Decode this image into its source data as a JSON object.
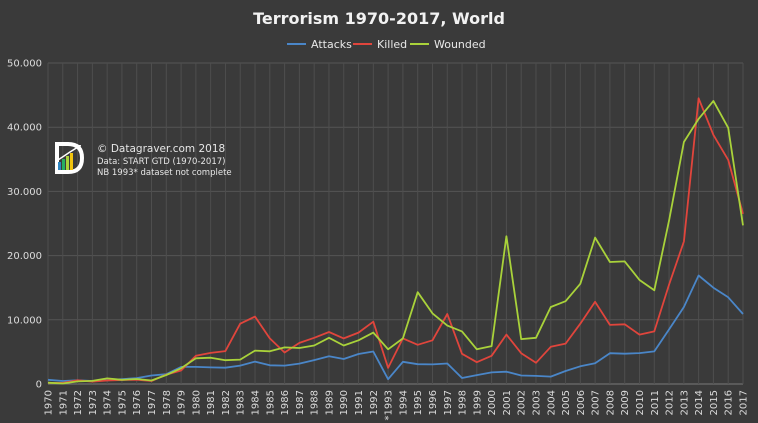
{
  "chart_data": {
    "type": "line",
    "title": "Terrorism 1970-2017, World",
    "x": [
      "1970",
      "1971",
      "1972",
      "1973",
      "1974",
      "1975",
      "1976",
      "1977",
      "1978",
      "1979",
      "1980",
      "1981",
      "1982",
      "1983",
      "1984",
      "1985",
      "1986",
      "1987",
      "1988",
      "1989",
      "1990",
      "1991",
      "1992",
      "*1993",
      "1994",
      "1995",
      "1996",
      "1997",
      "1998",
      "1999",
      "2000",
      "2001",
      "2002",
      "2003",
      "2004",
      "2005",
      "2006",
      "2007",
      "2008",
      "2009",
      "2010",
      "2011",
      "2012",
      "2013",
      "2014",
      "2015",
      "2016",
      "2017"
    ],
    "ylim": [
      0,
      50000
    ],
    "yticks": [
      0,
      10000,
      20000,
      30000,
      40000,
      50000
    ],
    "ytick_labels": [
      "0",
      "10.000",
      "20.000",
      "30.000",
      "40.000",
      "50.000"
    ],
    "grid": true,
    "legend_position": "top-center",
    "series": [
      {
        "name": "Attacks",
        "color": "#4a86c8",
        "values": [
          650,
          470,
          570,
          470,
          580,
          740,
          920,
          1320,
          1530,
          2660,
          2660,
          2590,
          2540,
          2870,
          3490,
          2920,
          2860,
          3180,
          3720,
          4320,
          3890,
          4680,
          5070,
          750,
          3460,
          3080,
          3060,
          3200,
          930,
          1390,
          1810,
          1910,
          1330,
          1260,
          1160,
          2020,
          2750,
          3240,
          4800,
          4720,
          4820,
          5080,
          8500,
          12000,
          16900,
          15000,
          13500,
          10900
        ]
      },
      {
        "name": "Killed",
        "color": "#e0453c",
        "values": [
          170,
          170,
          570,
          370,
          550,
          630,
          670,
          460,
          1460,
          2100,
          4400,
          4850,
          5130,
          9400,
          10500,
          7100,
          4900,
          6400,
          7200,
          8100,
          7100,
          8000,
          9700,
          2500,
          7100,
          6100,
          6800,
          10900,
          4700,
          3400,
          4400,
          7700,
          4800,
          3300,
          5800,
          6300,
          9400,
          12800,
          9200,
          9300,
          7700,
          8200,
          15500,
          22200,
          44500,
          38800,
          34900,
          26500
        ]
      },
      {
        "name": "Wounded",
        "color": "#a9d23a",
        "values": [
          200,
          80,
          400,
          480,
          880,
          650,
          780,
          550,
          1400,
          2450,
          4000,
          4100,
          3700,
          3800,
          5200,
          5100,
          5700,
          5600,
          6000,
          7200,
          6000,
          6800,
          8000,
          5400,
          7100,
          14300,
          11000,
          9100,
          8200,
          5400,
          5900,
          23000,
          7000,
          7200,
          12000,
          12900,
          15600,
          22800,
          19000,
          19100,
          16200,
          14600,
          25500,
          37700,
          41300,
          44100,
          39900,
          24700
        ]
      }
    ],
    "annotations": [
      "© Datagraver.com 2018",
      "Data: START GTD (1970-2017)",
      "NB 1993* dataset not complete"
    ]
  }
}
